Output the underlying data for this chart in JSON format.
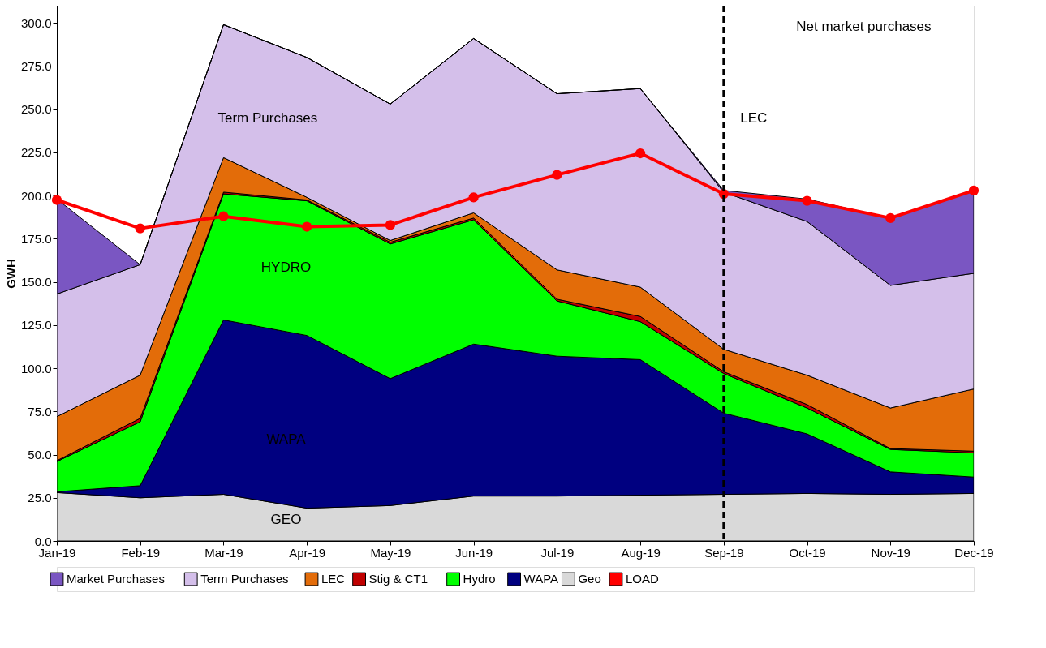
{
  "chart_data": {
    "type": "area",
    "ylabel": "GWH",
    "stacked": true,
    "legend": "bottom",
    "grid": false,
    "categories": [
      "Jan-19",
      "Feb-19",
      "Mar-19",
      "Apr-19",
      "May-19",
      "Jun-19",
      "Jul-19",
      "Aug-19",
      "Sep-19",
      "Oct-19",
      "Nov-19",
      "Dec-19"
    ],
    "ylim": [
      0,
      310
    ],
    "yticks": [
      {
        "value": 0,
        "label": "0.0"
      },
      {
        "value": 25,
        "label": "25.0"
      },
      {
        "value": 50,
        "label": "50.0"
      },
      {
        "value": 75,
        "label": "75.0"
      },
      {
        "value": 100,
        "label": "100.0"
      },
      {
        "value": 125,
        "label": "125.0"
      },
      {
        "value": 150,
        "label": "150.0"
      },
      {
        "value": 175,
        "label": "175.0"
      },
      {
        "value": 200,
        "label": "200.0"
      },
      {
        "value": 225,
        "label": "225.0"
      },
      {
        "value": 250,
        "label": "250.0"
      },
      {
        "value": 275,
        "label": "275.0"
      },
      {
        "value": 300,
        "label": "300.0"
      }
    ],
    "series": [
      {
        "name": "Geo",
        "color": "#d9d9d9",
        "values": [
          28,
          25,
          27,
          19,
          20.5,
          26,
          26,
          26.5,
          27,
          27.5,
          27,
          27.5
        ]
      },
      {
        "name": "WAPA",
        "color": "#000080",
        "values": [
          0.5,
          7,
          101,
          100,
          73.5,
          88,
          81,
          78.5,
          47,
          34.5,
          13,
          9.5
        ]
      },
      {
        "name": "Hydro",
        "color": "#00ff00",
        "values": [
          17.5,
          37,
          73,
          78,
          78,
          72,
          32,
          22,
          23,
          15,
          13,
          14
        ]
      },
      {
        "name": "Stig & CT1",
        "color": "#c00000",
        "values": [
          0.5,
          2,
          1,
          0.5,
          1,
          1,
          1,
          3,
          1,
          2,
          0.5,
          1
        ]
      },
      {
        "name": "LEC",
        "color": "#e36c09",
        "values": [
          25.5,
          25,
          20,
          1.5,
          1,
          3,
          17,
          17,
          13,
          17,
          23.5,
          36
        ]
      },
      {
        "name": "Term Purchases",
        "color": "#d4bfea",
        "values": [
          71,
          64,
          77,
          81,
          79,
          101,
          102,
          115,
          91,
          89,
          71,
          67
        ]
      },
      {
        "name": "Market Purchases",
        "color": "#7a56c2",
        "values": [
          55,
          0,
          0,
          0,
          0,
          0,
          0,
          0,
          1,
          13,
          39,
          48
        ]
      },
      {
        "name": "LOAD",
        "type": "line",
        "color": "#ff0000",
        "marker": "circle",
        "line_style": "solid",
        "values": [
          197.5,
          181,
          188,
          182,
          183,
          199,
          212,
          224.5,
          201,
          197,
          187,
          203
        ]
      }
    ],
    "ref_lines": [
      {
        "axis": "x",
        "value": "Sep-19",
        "color": "#000000",
        "line_style": "dashed"
      }
    ],
    "annotations": [
      "Term Purchases",
      "HYDRO",
      "WAPA",
      "GEO",
      "LEC",
      "Net market purchases"
    ]
  }
}
